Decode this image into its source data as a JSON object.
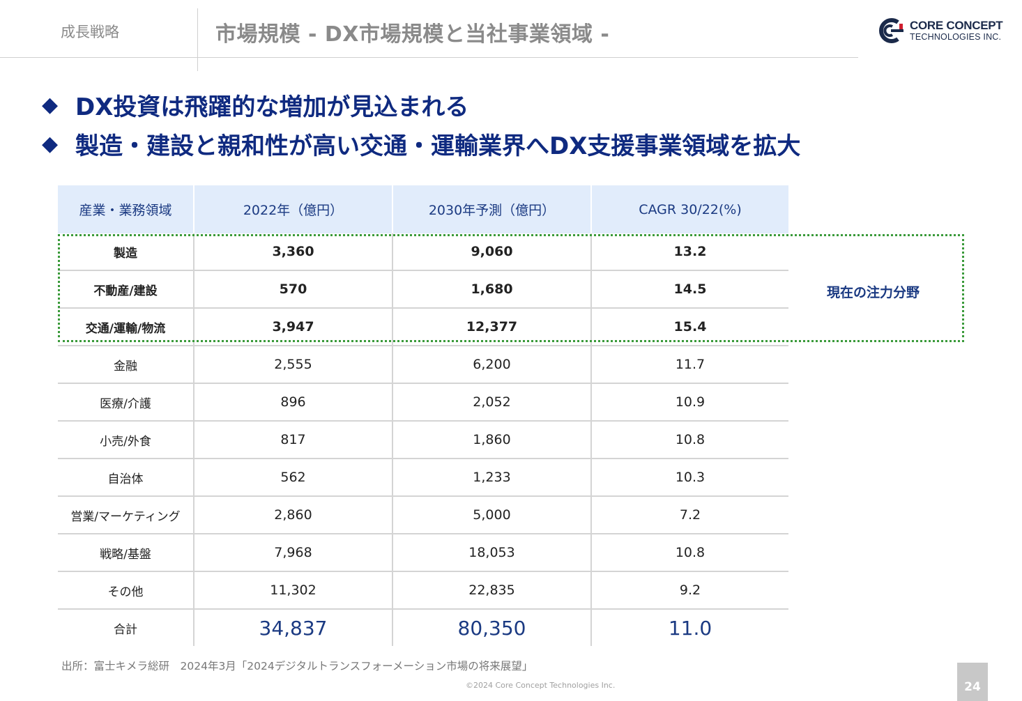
{
  "header": {
    "section": "成長戦略",
    "title": "市場規模 - DX市場規模と当社事業領域 -"
  },
  "logo": {
    "name": "CORE CONCEPT",
    "sub": "TECHNOLOGIES INC."
  },
  "headlines": [
    "DX投資は飛躍的な増加が見込まれる",
    "製造・建設と親和性が高い交通・運輸業界へDX支援事業領域を拡大"
  ],
  "table": {
    "columns": [
      "産業・業務領域",
      "2022年（億円）",
      "2030年予測（億円）",
      "CAGR 30/22(%)"
    ],
    "rows": [
      [
        "製造",
        "3,360",
        "9,060",
        "13.2"
      ],
      [
        "不動産/建設",
        "570",
        "1,680",
        "14.5"
      ],
      [
        "交通/運輸/物流",
        "3,947",
        "12,377",
        "15.4"
      ],
      [
        "金融",
        "2,555",
        "6,200",
        "11.7"
      ],
      [
        "医療/介護",
        "896",
        "2,052",
        "10.9"
      ],
      [
        "小売/外食",
        "817",
        "1,860",
        "10.8"
      ],
      [
        "自治体",
        "562",
        "1,233",
        "10.3"
      ],
      [
        "営業/マーケティング",
        "2,860",
        "5,000",
        "7.2"
      ],
      [
        "戦略/基盤",
        "7,968",
        "18,053",
        "10.8"
      ],
      [
        "その他",
        "11,302",
        "22,835",
        "9.2"
      ]
    ],
    "total": [
      "合計",
      "34,837",
      "80,350",
      "11.0"
    ]
  },
  "focus_label": "現在の注力分野",
  "source": "出所：富士キメラ総研　2024年3月「2024デジタルトランスフォーメーション市場の将来展望」",
  "copyright": "©2024 Core Concept Technologies Inc.",
  "page_number": "24",
  "colors": {
    "headline": "#0f2a80",
    "header_cell_bg": "#e1ecfb",
    "focus_border": "#3a9a3a",
    "total_value": "#1b3a82"
  }
}
